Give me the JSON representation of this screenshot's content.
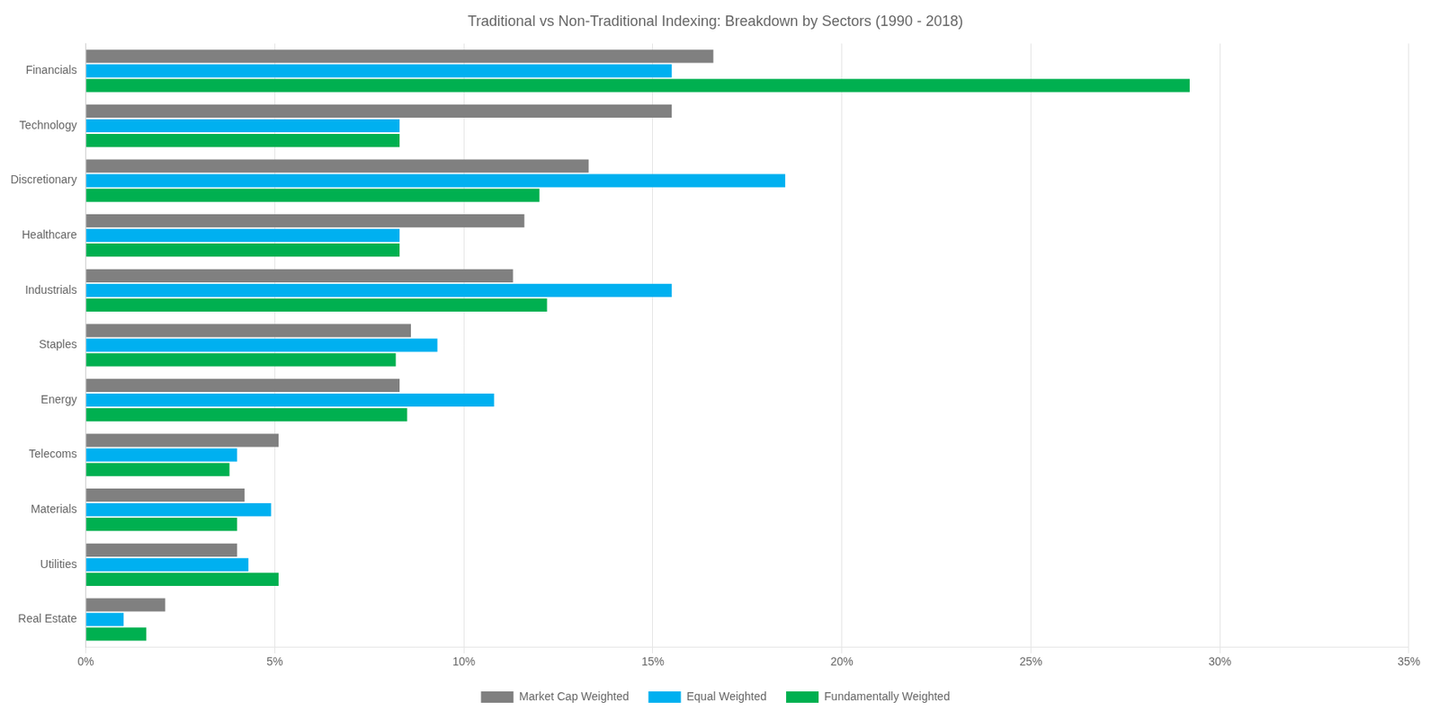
{
  "chart_data": {
    "type": "bar",
    "orientation": "horizontal",
    "title": "Traditional vs Non-Traditional Indexing: Breakdown by Sectors (1990 - 2018)",
    "categories": [
      "Financials",
      "Technology",
      "Discretionary",
      "Healthcare",
      "Industrials",
      "Staples",
      "Energy",
      "Telecoms",
      "Materials",
      "Utilities",
      "Real Estate"
    ],
    "series": [
      {
        "name": "Market Cap Weighted",
        "color": "#808080",
        "values": [
          0.166,
          0.155,
          0.133,
          0.116,
          0.113,
          0.086,
          0.083,
          0.051,
          0.042,
          0.04,
          0.021
        ]
      },
      {
        "name": "Equal Weighted",
        "color": "#00b0f0",
        "values": [
          0.155,
          0.083,
          0.185,
          0.083,
          0.155,
          0.093,
          0.108,
          0.04,
          0.049,
          0.043,
          0.01
        ]
      },
      {
        "name": "Fundamentally Weighted",
        "color": "#00b050",
        "values": [
          0.292,
          0.083,
          0.12,
          0.083,
          0.122,
          0.082,
          0.085,
          0.038,
          0.04,
          0.051,
          0.016
        ]
      }
    ],
    "xlim": [
      0,
      0.35
    ],
    "xticks": [
      {
        "value": 0,
        "label": "0%"
      },
      {
        "value": 0.05,
        "label": "5%"
      },
      {
        "value": 0.1,
        "label": "10%"
      },
      {
        "value": 0.15,
        "label": "15%"
      },
      {
        "value": 0.2,
        "label": "20%"
      },
      {
        "value": 0.25,
        "label": "25%"
      },
      {
        "value": 0.3,
        "label": "30%"
      },
      {
        "value": 0.35,
        "label": "35%"
      }
    ],
    "grid": true,
    "legend": "bottom"
  }
}
